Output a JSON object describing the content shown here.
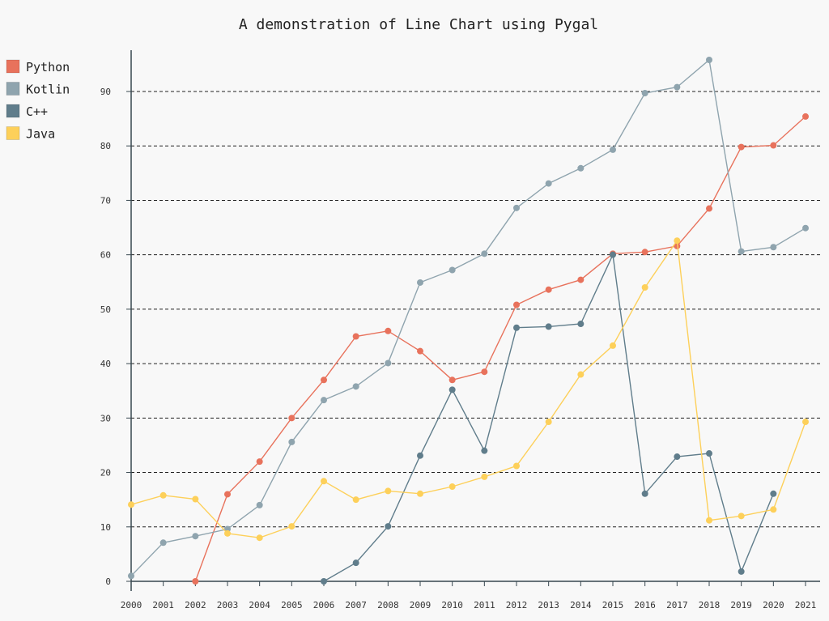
{
  "chart_data": {
    "type": "line",
    "title": "A demonstration of Line Chart using Pygal",
    "xlabel": "",
    "ylabel": "",
    "categories": [
      "2000",
      "2001",
      "2002",
      "2003",
      "2004",
      "2005",
      "2006",
      "2007",
      "2008",
      "2009",
      "2010",
      "2011",
      "2012",
      "2013",
      "2014",
      "2015",
      "2016",
      "2017",
      "2018",
      "2019",
      "2020",
      "2021"
    ],
    "ylim": [
      0,
      96
    ],
    "yticks": [
      0,
      10,
      20,
      30,
      40,
      50,
      60,
      70,
      80,
      90
    ],
    "grid": true,
    "legend_position": "top-left",
    "series": [
      {
        "name": "Python",
        "color": "#e8725c",
        "values": [
          null,
          null,
          0,
          16,
          22,
          30,
          37,
          45,
          46,
          42.3,
          37,
          38.5,
          50.8,
          53.6,
          55.4,
          60.2,
          60.5,
          61.6,
          68.5,
          79.8,
          80.1,
          85.4
        ]
      },
      {
        "name": "Kotlin",
        "color": "#8fa4ae",
        "values": [
          1,
          7.1,
          8.3,
          9.6,
          14,
          25.6,
          33.3,
          35.8,
          40.1,
          54.9,
          57.2,
          60.2,
          68.6,
          73.1,
          75.9,
          79.3,
          89.7,
          90.8,
          95.8,
          60.6,
          61.4,
          64.9
        ]
      },
      {
        "name": "C++",
        "color": "#607d8b",
        "values": [
          null,
          null,
          null,
          null,
          null,
          null,
          0,
          3.4,
          10.1,
          23.1,
          35.2,
          24,
          46.6,
          46.8,
          47.3,
          60,
          16.1,
          22.9,
          23.5,
          1.8,
          16.1,
          null
        ]
      },
      {
        "name": "Java",
        "color": "#fdd05a",
        "values": [
          14.1,
          15.8,
          15.1,
          8.8,
          8,
          10.1,
          18.4,
          15,
          16.6,
          16.1,
          17.4,
          19.2,
          21.2,
          29.3,
          38,
          43.3,
          54,
          62.6,
          11.2,
          12,
          13.2,
          29.3
        ]
      }
    ]
  }
}
